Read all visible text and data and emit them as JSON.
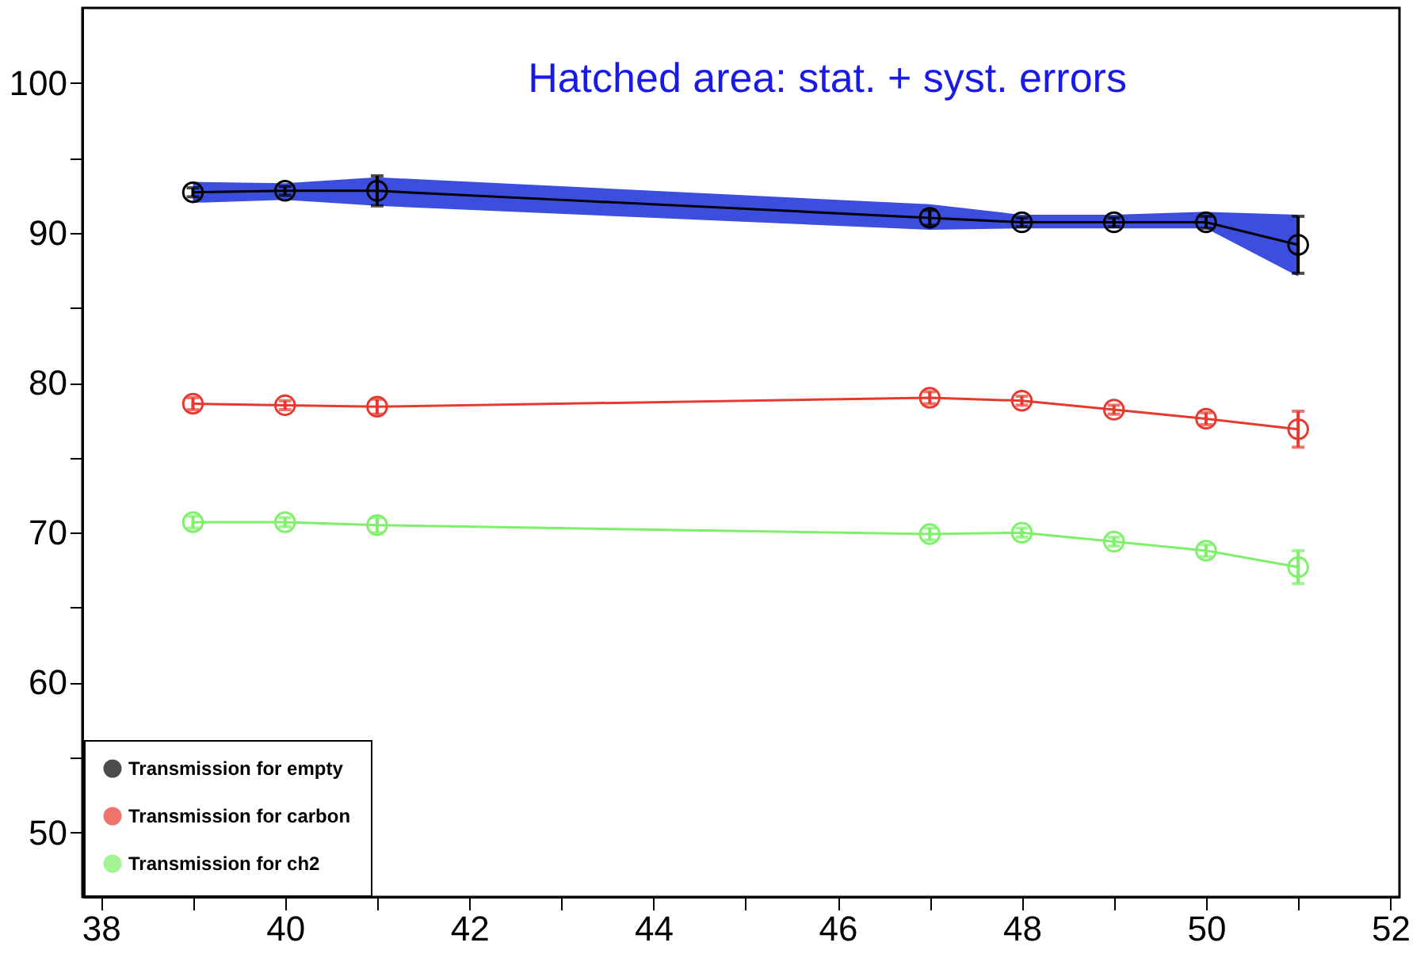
{
  "chart_data": {
    "type": "line",
    "x": [
      39,
      40,
      41,
      47,
      48,
      49,
      50,
      51
    ],
    "series": [
      {
        "name": "Transmission for empty",
        "color": "#000000",
        "values": [
          92.7,
          92.8,
          92.8,
          91.0,
          90.7,
          90.7,
          90.7,
          89.2
        ],
        "errors": [
          0.3,
          0.3,
          1.0,
          0.5,
          0.3,
          0.3,
          0.4,
          1.9
        ],
        "lower": [
          92.0,
          92.2,
          91.8,
          90.2,
          90.3,
          90.3,
          90.3,
          87.1
        ],
        "upper": [
          93.4,
          93.3,
          93.7,
          91.9,
          91.2,
          91.2,
          91.4,
          91.2
        ]
      },
      {
        "name": "Transmission for carbon",
        "color": "#e8392f",
        "values": [
          78.6,
          78.5,
          78.4,
          79.0,
          78.8,
          78.2,
          77.6,
          76.9
        ],
        "errors": [
          0.4,
          0.3,
          0.5,
          0.4,
          0.3,
          0.3,
          0.4,
          1.2
        ]
      },
      {
        "name": "Transmission for ch2",
        "color": "#7ef06a",
        "values": [
          70.7,
          70.7,
          70.5,
          69.9,
          70.0,
          69.4,
          68.8,
          67.7
        ],
        "errors": [
          0.4,
          0.3,
          0.5,
          0.4,
          0.3,
          0.3,
          0.4,
          1.1
        ]
      }
    ],
    "xlim": [
      37.8,
      52.1
    ],
    "ylim": [
      45.7,
      105
    ],
    "xticks": [
      38,
      {
        "value": 39,
        "label": null
      },
      40,
      {
        "value": 41,
        "label": null
      },
      42,
      {
        "value": 43,
        "label": null
      },
      44,
      {
        "value": 45,
        "label": null
      },
      46,
      {
        "value": 47,
        "label": null
      },
      48,
      {
        "value": 49,
        "label": null
      },
      50,
      {
        "value": 51,
        "label": null
      },
      52
    ],
    "yticks": [
      50,
      {
        "value": 55,
        "label": null
      },
      60,
      {
        "value": 65,
        "label": null
      },
      70,
      {
        "value": 75,
        "label": null
      },
      80,
      {
        "value": 85,
        "label": null
      },
      90,
      {
        "value": 95,
        "label": null
      },
      100
    ],
    "annotations": [
      "Hatched area: stat. + syst. errors"
    ],
    "marker": "circle",
    "line_style": "solid",
    "grid": false,
    "legend": "bottom left"
  }
}
